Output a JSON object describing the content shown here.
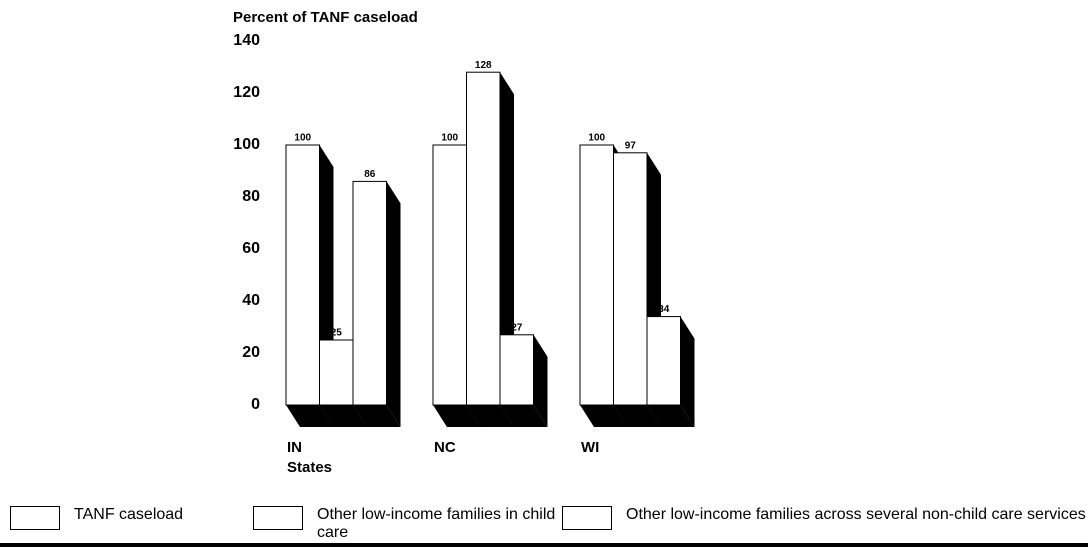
{
  "chart_data": {
    "type": "bar3d",
    "y_label": "Percent of TANF caseload",
    "x_label": "States",
    "categories": [
      "IN",
      "NC",
      "WI"
    ],
    "series": [
      {
        "name": "TANF caseload",
        "color": "#ffffff",
        "values": [
          100,
          100,
          100
        ]
      },
      {
        "name": "Other low-income families in child care",
        "color": "#ffffff",
        "values": [
          25,
          128,
          97
        ]
      },
      {
        "name": "Other low-income families across several non-child care services",
        "color": "#ffffff",
        "values": [
          86,
          27,
          34
        ]
      }
    ],
    "ylim": [
      0,
      140
    ],
    "yticks": [
      0,
      20,
      40,
      60,
      80,
      100,
      120,
      140
    ]
  }
}
